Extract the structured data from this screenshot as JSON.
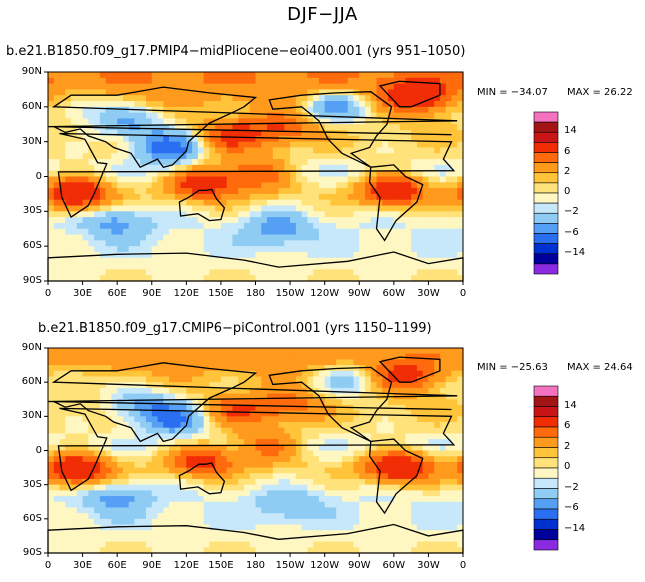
{
  "title": "DJF−JJA",
  "colors": {
    "levels": [
      "#8a2be2",
      "#00009c",
      "#0032d2",
      "#2a6ff0",
      "#55a0f5",
      "#8fccf4",
      "#c6e8fa",
      "#fff7c2",
      "#ffe27a",
      "#ffc43a",
      "#ff9a1c",
      "#ff6a0d",
      "#f02d05",
      "#c81616",
      "#a31515",
      "#f472c0"
    ]
  },
  "chart_data": [
    {
      "type": "heatmap",
      "panel": "top",
      "title": "b.e21.B1850.f09_g17.PMIP4−midPliocene−eoi400.001 (yrs 951–1050)",
      "min_label": "MIN = −34.07",
      "max_label": "MAX =   26.22",
      "min": -34.07,
      "max": 26.22,
      "lat_ticks": [
        "90N",
        "60N",
        "30N",
        "0",
        "30S",
        "60S",
        "90S"
      ],
      "lon_ticks": [
        "0",
        "30E",
        "60E",
        "90E",
        "120E",
        "150E",
        "180",
        "150W",
        "120W",
        "90W",
        "60W",
        "30W",
        "0"
      ],
      "colorbar_labels": [
        "14",
        "6",
        "2",
        "0",
        "−2",
        "−6",
        "−14"
      ],
      "field": {
        "zonal_bands": [
          [
            80,
            4
          ],
          [
            55,
            1
          ],
          [
            32,
            1
          ],
          [
            15,
            0
          ],
          [
            5,
            -1
          ],
          [
            -5,
            0
          ],
          [
            -15,
            1
          ],
          [
            -40,
            -1
          ],
          [
            -65,
            -1
          ],
          [
            -85,
            0
          ]
        ],
        "anomalies": [
          {
            "lon": 105,
            "lat": 25,
            "value": -8
          },
          {
            "lon": 160,
            "lat": 35,
            "value": 6
          },
          {
            "lon": 205,
            "lat": 42,
            "value": 5
          },
          {
            "lon": 320,
            "lat": 68,
            "value": 7
          },
          {
            "lon": 25,
            "lat": -15,
            "value": 9
          },
          {
            "lon": 135,
            "lat": -5,
            "value": 8
          },
          {
            "lon": 300,
            "lat": -12,
            "value": 8
          },
          {
            "lon": 180,
            "lat": 3,
            "value": 6
          },
          {
            "lon": 70,
            "lat": 45,
            "value": -5
          },
          {
            "lon": 250,
            "lat": 60,
            "value": -6
          },
          {
            "lon": 30,
            "lat": 62,
            "value": -3
          },
          {
            "lon": 60,
            "lat": -40,
            "value": -4
          },
          {
            "lon": 200,
            "lat": -45,
            "value": -4
          }
        ]
      }
    },
    {
      "type": "heatmap",
      "panel": "bottom",
      "title": "b.e21.B1850.f09_g17.CMIP6−piControl.001 (yrs 1150–1199)",
      "min_label": "MIN = −25.63",
      "max_label": "MAX =   24.64",
      "min": -25.63,
      "max": 24.64,
      "lat_ticks": [
        "90N",
        "60N",
        "30N",
        "0",
        "30S",
        "60S",
        "90S"
      ],
      "lon_ticks": [
        "0",
        "30E",
        "60E",
        "90E",
        "120E",
        "150E",
        "180",
        "150W",
        "120W",
        "90W",
        "60W",
        "30W",
        "0"
      ],
      "colorbar_labels": [
        "14",
        "6",
        "2",
        "0",
        "−2",
        "−6",
        "−14"
      ],
      "field": {
        "zonal_bands": [
          [
            80,
            3
          ],
          [
            55,
            1
          ],
          [
            32,
            1
          ],
          [
            15,
            0
          ],
          [
            5,
            -1
          ],
          [
            -5,
            0
          ],
          [
            -15,
            1
          ],
          [
            -40,
            -1
          ],
          [
            -65,
            -1
          ],
          [
            -85,
            0
          ]
        ],
        "anomalies": [
          {
            "lon": 110,
            "lat": 28,
            "value": -7
          },
          {
            "lon": 165,
            "lat": 35,
            "value": 5
          },
          {
            "lon": 210,
            "lat": 40,
            "value": 4
          },
          {
            "lon": 310,
            "lat": 65,
            "value": 6
          },
          {
            "lon": 25,
            "lat": -17,
            "value": 9
          },
          {
            "lon": 135,
            "lat": -8,
            "value": 7
          },
          {
            "lon": 305,
            "lat": -15,
            "value": 9
          },
          {
            "lon": 190,
            "lat": 5,
            "value": 5
          },
          {
            "lon": 80,
            "lat": 40,
            "value": -5
          },
          {
            "lon": 260,
            "lat": 62,
            "value": -4
          },
          {
            "lon": 20,
            "lat": 62,
            "value": -2
          },
          {
            "lon": 60,
            "lat": -42,
            "value": -4
          },
          {
            "lon": 210,
            "lat": -48,
            "value": -3
          }
        ]
      }
    }
  ]
}
